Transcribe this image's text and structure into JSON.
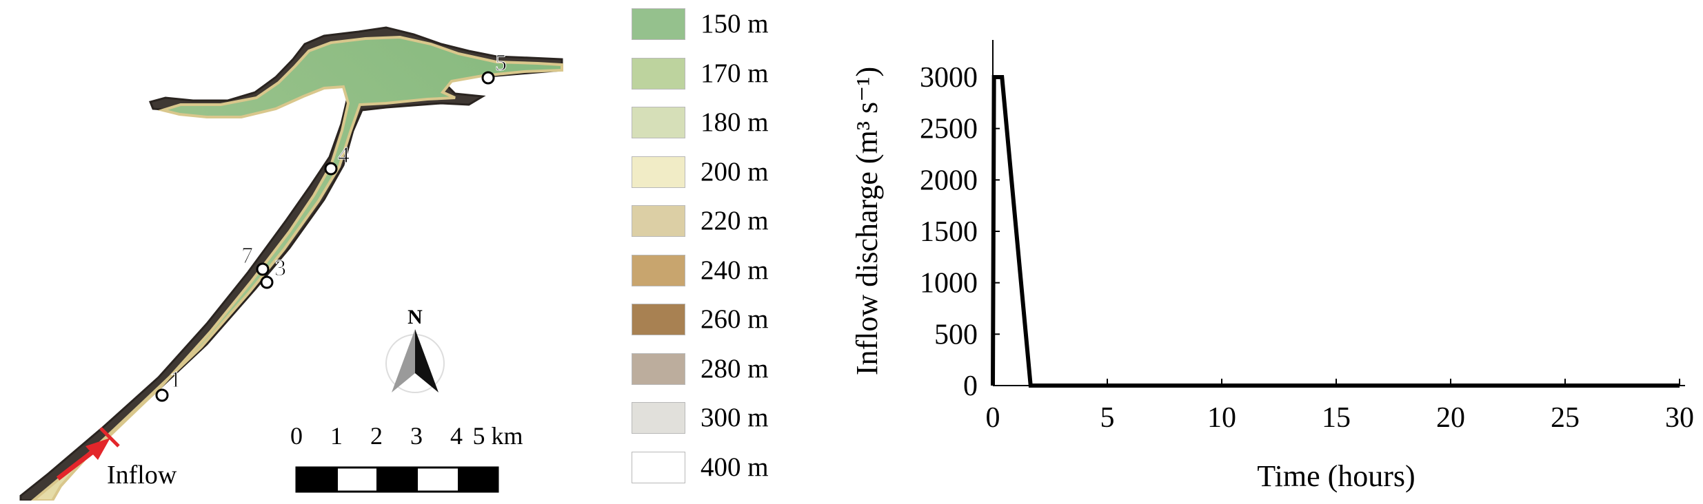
{
  "map": {
    "station_labels": [
      "5",
      "4",
      "7",
      "3",
      "1"
    ],
    "inflow_label": "Inflow",
    "north_label": "N",
    "scale_ticks": [
      "0",
      "1",
      "2",
      "3",
      "4",
      "5 km"
    ],
    "colors": {
      "water": "#8fbe86",
      "water_light": "#c9d8a6",
      "bank": "#e6d8a6",
      "cliff": "#3c3632",
      "inflow_arrow": "#e3262b"
    }
  },
  "legend": {
    "items": [
      {
        "label": "150 m",
        "color": "#95c18d"
      },
      {
        "label": "170 m",
        "color": "#bdd39e"
      },
      {
        "label": "180 m",
        "color": "#d6dfb8"
      },
      {
        "label": "200 m",
        "color": "#f1ecc6"
      },
      {
        "label": "220 m",
        "color": "#dccfa5"
      },
      {
        "label": "240 m",
        "color": "#c8a56e"
      },
      {
        "label": "260 m",
        "color": "#a88152"
      },
      {
        "label": "280 m",
        "color": "#bcad9d"
      },
      {
        "label": "300 m",
        "color": "#e1e0db"
      },
      {
        "label": "400 m",
        "color": "#ffffff"
      }
    ]
  },
  "chart_data": {
    "type": "line",
    "title": "",
    "xlabel": "Time (hours)",
    "ylabel": "Inflow discharge (m³ s⁻¹)",
    "xlim": [
      0,
      30
    ],
    "ylim": [
      0,
      3000
    ],
    "xticks": [
      0,
      5,
      10,
      15,
      20,
      25,
      30
    ],
    "yticks": [
      0,
      500,
      1000,
      1500,
      2000,
      2500,
      3000
    ],
    "grid": false,
    "legend": "none",
    "series": [
      {
        "x": [
          0,
          0.05,
          0.3,
          0.4,
          1.65,
          30
        ],
        "y": [
          0,
          3000,
          3000,
          3000,
          0,
          0
        ]
      }
    ]
  }
}
